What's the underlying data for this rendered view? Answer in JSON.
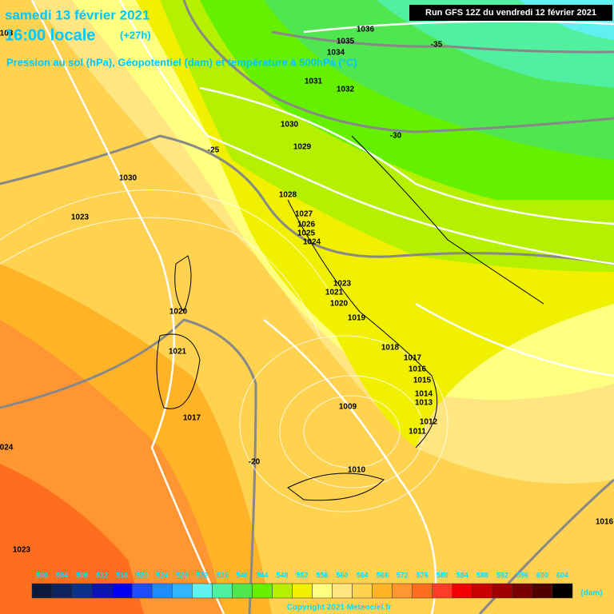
{
  "header": {
    "date": "samedi 13 février 2021",
    "time": "16:00 locale",
    "lead": "(+27h)",
    "subtitle": "Pression au sol (hPa), Géopotentiel (dam) et température à 500hPa (°C)",
    "run": "Run GFS 12Z du vendredi 12 février 2021"
  },
  "isobar_labels": [
    "1036",
    "1035",
    "1034",
    "1031",
    "1032",
    "1030",
    "1029",
    "1030",
    "1028",
    "1023",
    "1027",
    "1026",
    "1025",
    "1024",
    "1023",
    "1021",
    "1020",
    "1020",
    "1019",
    "1018",
    "1021",
    "1017",
    "1016",
    "1015",
    "1014",
    "1013",
    "1017",
    "1009",
    "1012",
    "1011",
    "1010",
    "1016",
    "1023",
    "103",
    "024"
  ],
  "temperature_labels": [
    "-35",
    "-30",
    "-25",
    "-20"
  ],
  "legend": {
    "values": [
      500,
      504,
      508,
      512,
      516,
      520,
      524,
      528,
      532,
      536,
      540,
      544,
      548,
      552,
      556,
      560,
      564,
      568,
      572,
      576,
      580,
      584,
      588,
      592,
      596,
      600,
      604
    ],
    "colors": [
      "#0a1a3c",
      "#0c2460",
      "#0a3288",
      "#0a14b4",
      "#0000f0",
      "#1e4cff",
      "#1e8cff",
      "#32b4ff",
      "#60f0f0",
      "#50f0a0",
      "#50e650",
      "#64f000",
      "#b4f000",
      "#f0f000",
      "#ffff80",
      "#ffe680",
      "#ffd250",
      "#ffb428",
      "#ff9632",
      "#ff6e1e",
      "#ff3c28",
      "#f00000",
      "#c80000",
      "#a00000",
      "#780000",
      "#500000",
      "#000000"
    ],
    "unit": "(dam)"
  },
  "footer": {
    "copyright": "Copyright 2021 Meteociel.fr"
  }
}
